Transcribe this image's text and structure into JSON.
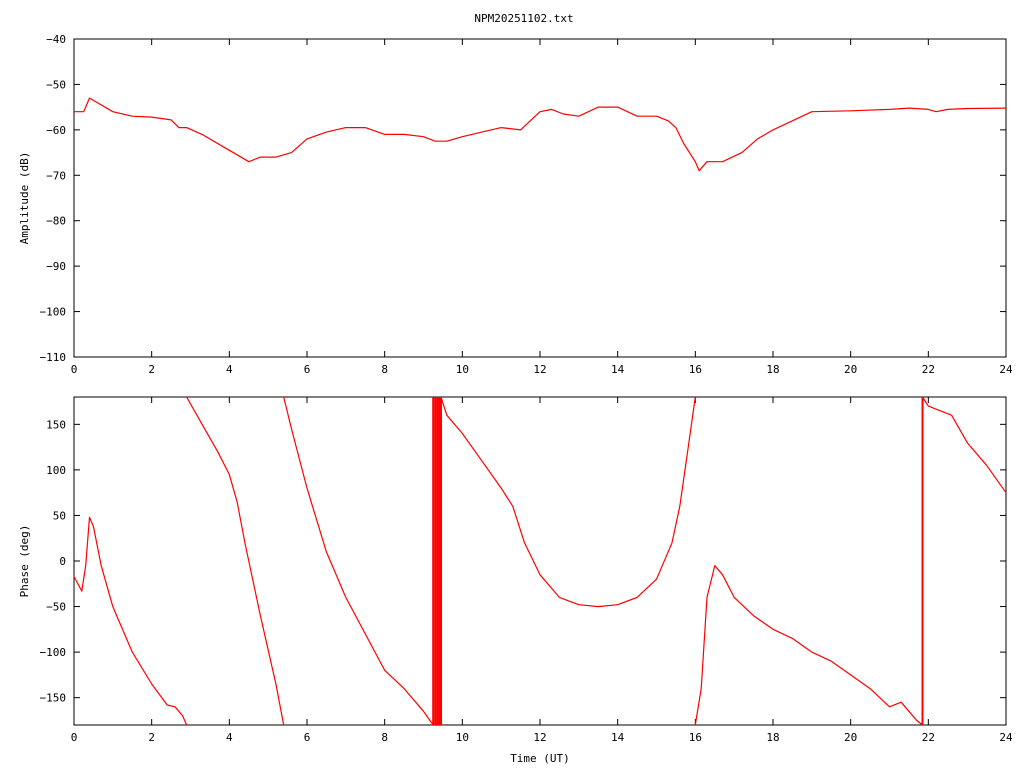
{
  "title": "NPM20251102.txt",
  "colors": {
    "trace": "#ff0000",
    "axis": "#000000",
    "background": "#ffffff"
  },
  "chart_data": [
    {
      "type": "line",
      "title": "NPM20251102.txt",
      "xlabel": "",
      "ylabel": "Amplitude (dB)",
      "xlim": [
        0,
        24
      ],
      "ylim": [
        -110,
        -40
      ],
      "xticks": [
        0,
        2,
        4,
        6,
        8,
        10,
        12,
        14,
        16,
        18,
        20,
        22,
        24
      ],
      "yticks": [
        -110,
        -100,
        -90,
        -80,
        -70,
        -60,
        -50,
        -40
      ],
      "xtick_labels": [
        "0",
        "2",
        "4",
        "6",
        "8",
        "10",
        "12",
        "14",
        "16",
        "18",
        "20",
        "22",
        "24"
      ],
      "ytick_labels": [
        "−110",
        "−100",
        "−90",
        "−80",
        "−70",
        "−60",
        "−50",
        "−40"
      ],
      "grid": false,
      "series": [
        {
          "color": "#ff0000",
          "x": [
            0,
            0.25,
            0.4,
            0.6,
            1.0,
            1.5,
            2.0,
            2.5,
            2.7,
            2.9,
            3.3,
            3.8,
            4.2,
            4.5,
            4.8,
            5.2,
            5.6,
            6.0,
            6.5,
            7.0,
            7.5,
            8.0,
            8.5,
            9.0,
            9.3,
            9.6,
            10.0,
            10.5,
            11.0,
            11.5,
            12.0,
            12.3,
            12.6,
            13.0,
            13.5,
            14.0,
            14.5,
            15.0,
            15.3,
            15.5,
            15.7,
            16.0,
            16.1,
            16.3,
            16.7,
            17.2,
            17.6,
            18.0,
            18.5,
            19.0,
            20.0,
            21.0,
            21.5,
            22.0,
            22.2,
            22.5,
            23.0,
            24.0
          ],
          "y": [
            -56,
            -56,
            -53,
            -54,
            -56,
            -57,
            -57.2,
            -57.8,
            -59.5,
            -59.5,
            -61,
            -63.5,
            -65.5,
            -67,
            -66,
            -66,
            -65,
            -62,
            -60.5,
            -59.5,
            -59.5,
            -61,
            -61,
            -61.5,
            -62.5,
            -62.5,
            -61.5,
            -60.5,
            -59.5,
            -60,
            -56,
            -55.5,
            -56.5,
            -57,
            -55,
            -55,
            -57,
            -57,
            -58,
            -59.5,
            -63,
            -67,
            -69,
            -67,
            -67,
            -65,
            -62,
            -60,
            -58,
            -56,
            -55.8,
            -55.5,
            -55.2,
            -55.5,
            -56,
            -55.5,
            -55.3,
            -55.2
          ]
        }
      ]
    },
    {
      "type": "line",
      "title": "",
      "xlabel": "Time (UT)",
      "ylabel": "Phase (deg)",
      "xlim": [
        0,
        24
      ],
      "ylim": [
        -180,
        180
      ],
      "xticks": [
        0,
        2,
        4,
        6,
        8,
        10,
        12,
        14,
        16,
        18,
        20,
        22,
        24
      ],
      "yticks": [
        -150,
        -100,
        -50,
        0,
        50,
        100,
        150
      ],
      "xtick_labels": [
        "0",
        "2",
        "4",
        "6",
        "8",
        "10",
        "12",
        "14",
        "16",
        "18",
        "20",
        "22",
        "24"
      ],
      "ytick_labels": [
        "−150",
        "−100",
        "−50",
        "0",
        "50",
        "100",
        "150"
      ],
      "grid": false,
      "series": [
        {
          "color": "#ff0000",
          "segments": [
            {
              "x": [
                0,
                0.2,
                0.3,
                0.4,
                0.5,
                0.7,
                1.0,
                1.5,
                2.0,
                2.4,
                2.6,
                2.8,
                2.9
              ],
              "y": [
                -17,
                -33,
                -5,
                48,
                38,
                -5,
                -50,
                -100,
                -135,
                -158,
                -160,
                -170,
                -180
              ]
            },
            {
              "x": [
                2.9,
                3.3,
                3.7,
                4.0,
                4.2,
                4.4,
                4.8,
                5.2,
                5.4
              ],
              "y": [
                180,
                150,
                120,
                95,
                65,
                20,
                -60,
                -135,
                -180
              ]
            },
            {
              "x": [
                5.4,
                5.6,
                6.0,
                6.5,
                7.0,
                7.5,
                8.0,
                8.5,
                9.0,
                9.25
              ],
              "y": [
                180,
                145,
                80,
                10,
                -40,
                -80,
                -120,
                -140,
                -165,
                -180
              ]
            },
            {
              "x": [
                9.45,
                9.6,
                10.0,
                10.5,
                11.0,
                11.3,
                11.6,
                12.0,
                12.5,
                13.0,
                13.5,
                14.0,
                14.5,
                15.0,
                15.4,
                15.6,
                15.8,
                16.0
              ],
              "y": [
                180,
                160,
                140,
                110,
                80,
                60,
                20,
                -15,
                -40,
                -48,
                -50,
                -48,
                -40,
                -20,
                20,
                60,
                120,
                180
              ]
            },
            {
              "x": [
                16.0,
                16.15,
                16.3,
                16.5,
                16.7,
                17.0,
                17.5,
                18.0,
                18.5,
                19.0,
                19.5,
                20.0,
                20.5,
                21.0,
                21.3,
                21.5,
                21.7,
                21.85
              ],
              "y": [
                -180,
                -140,
                -40,
                -5,
                -15,
                -40,
                -60,
                -75,
                -85,
                -100,
                -110,
                -125,
                -140,
                -160,
                -155,
                -165,
                -175,
                -180
              ]
            },
            {
              "x": [
                21.85,
                22.0,
                22.3,
                22.6,
                23.0,
                23.5,
                24.0
              ],
              "y": [
                180,
                170,
                165,
                160,
                130,
                105,
                75
              ]
            }
          ],
          "wrap_bursts": [
            9.25,
            9.3,
            9.35,
            9.4,
            9.45,
            21.85
          ]
        }
      ]
    }
  ]
}
